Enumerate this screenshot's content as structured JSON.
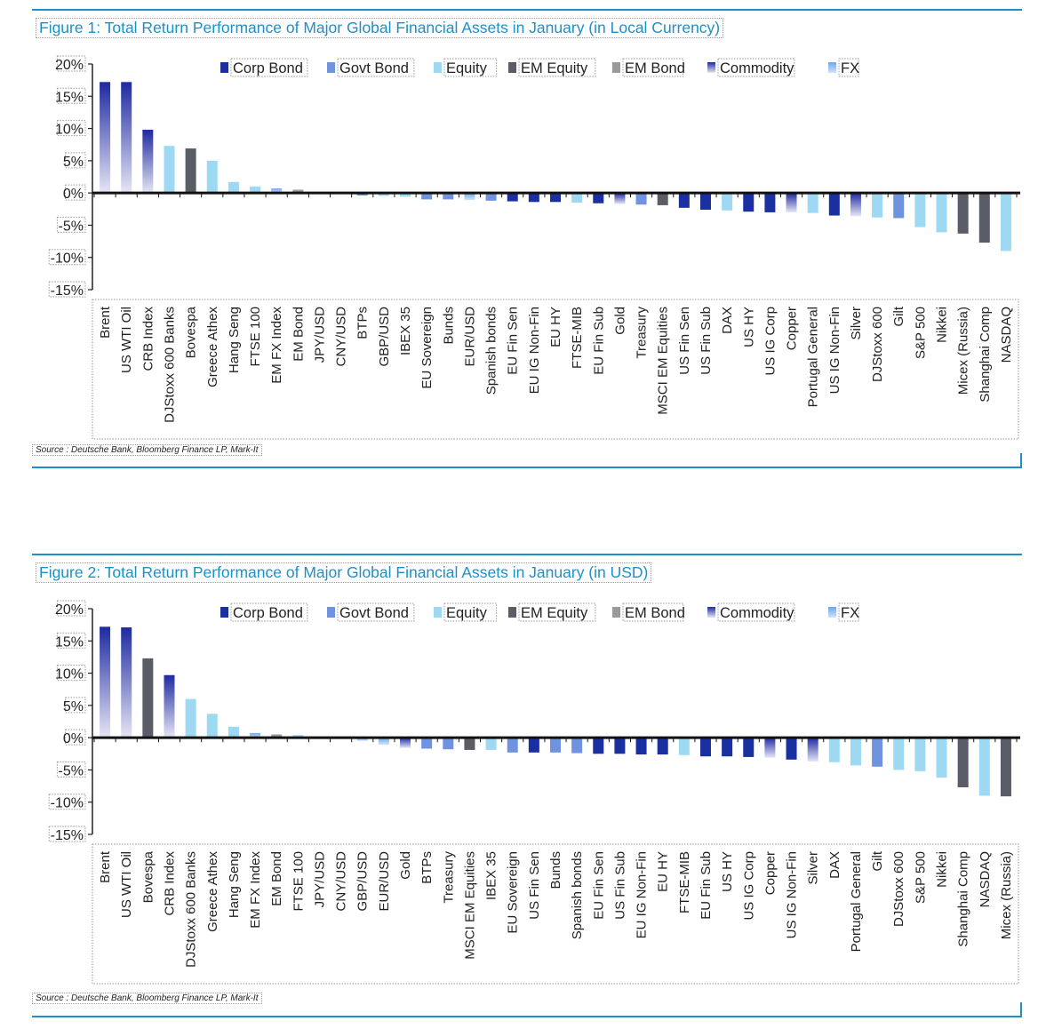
{
  "chart_data": [
    {
      "type": "bar",
      "title": "Figure 1: Total Return Performance of Major Global Financial Assets in January (in Local Currency)",
      "source": "Source : Deutsche Bank, Bloomberg Finance LP, Mark-It",
      "ylim": [
        -15,
        20
      ],
      "yticks": [
        "20%",
        "15%",
        "10%",
        "5%",
        "0%",
        "-5%",
        "-10%",
        "-15%"
      ],
      "ytick_values": [
        20,
        15,
        10,
        5,
        0,
        -5,
        -10,
        -15
      ],
      "legend": [
        {
          "name": "Corp Bond",
          "key": "corp"
        },
        {
          "name": "Govt Bond",
          "key": "govt"
        },
        {
          "name": "Equity",
          "key": "equity"
        },
        {
          "name": "EM Equity",
          "key": "emeq"
        },
        {
          "name": "EM Bond",
          "key": "embond"
        },
        {
          "name": "Commodity",
          "key": "commodity"
        },
        {
          "name": "FX",
          "key": "fx"
        }
      ],
      "categories": [
        "Brent",
        "US WTI Oil",
        "CRB Index",
        "DJStoxx 600 Banks",
        "Bovespa",
        "Greece Athex",
        "Hang Seng",
        "FTSE 100",
        "EM FX Index",
        "EM Bond",
        "JPY/USD",
        "CNY/USD",
        "BTPs",
        "GBP/USD",
        "IBEX 35",
        "EU Sovereign",
        "Bunds",
        "EUR/USD",
        "Spanish bonds",
        "EU Fin Sen",
        "EU IG Non-Fin",
        "EU HY",
        "FTSE-MIB",
        "EU Fin Sub",
        "Gold",
        "Treasury",
        "MSCI EM Equities",
        "US Fin Sen",
        "US Fin Sub",
        "DAX",
        "US HY",
        "US IG Corp",
        "Copper",
        "Portugal General",
        "US IG Non-Fin",
        "Silver",
        "DJStoxx 600",
        "Gilt",
        "S&P 500",
        "Nikkei",
        "Micex (Russia)",
        "Shanghai Comp",
        "NASDAQ"
      ],
      "values": [
        17.2,
        17.2,
        9.8,
        7.3,
        6.9,
        5.0,
        1.7,
        1.0,
        0.7,
        0.5,
        0.1,
        0.1,
        -0.4,
        -0.5,
        -0.6,
        -1.0,
        -1.0,
        -1.1,
        -1.2,
        -1.3,
        -1.4,
        -1.4,
        -1.5,
        -1.6,
        -1.7,
        -1.8,
        -1.9,
        -2.3,
        -2.6,
        -2.7,
        -2.9,
        -3.0,
        -3.0,
        -3.1,
        -3.5,
        -3.6,
        -3.8,
        -3.9,
        -5.3,
        -6.1,
        -6.3,
        -7.7,
        -9.0
      ],
      "asset_class": [
        "commodity",
        "commodity",
        "commodity",
        "equity",
        "emeq",
        "equity",
        "equity",
        "equity",
        "fx",
        "embond",
        "fx",
        "fx",
        "govt",
        "fx",
        "equity",
        "govt",
        "govt",
        "fx",
        "govt",
        "corp",
        "corp",
        "corp",
        "equity",
        "corp",
        "commodity",
        "govt",
        "emeq",
        "corp",
        "corp",
        "equity",
        "corp",
        "corp",
        "commodity",
        "equity",
        "corp",
        "commodity",
        "equity",
        "govt",
        "equity",
        "equity",
        "emeq",
        "emeq",
        "equity"
      ]
    },
    {
      "type": "bar",
      "title": "Figure 2: Total Return Performance of Major Global Financial Assets in January (in USD)",
      "source": "Source : Deutsche Bank, Bloomberg Finance LP, Mark-It",
      "ylim": [
        -15,
        20
      ],
      "yticks": [
        "20%",
        "15%",
        "10%",
        "5%",
        "0%",
        "-5%",
        "-10%",
        "-15%"
      ],
      "ytick_values": [
        20,
        15,
        10,
        5,
        0,
        -5,
        -10,
        -15
      ],
      "legend": [
        {
          "name": "Corp Bond",
          "key": "corp"
        },
        {
          "name": "Govt Bond",
          "key": "govt"
        },
        {
          "name": "Equity",
          "key": "equity"
        },
        {
          "name": "EM Equity",
          "key": "emeq"
        },
        {
          "name": "EM Bond",
          "key": "embond"
        },
        {
          "name": "Commodity",
          "key": "commodity"
        },
        {
          "name": "FX",
          "key": "fx"
        }
      ],
      "categories": [
        "Brent",
        "US WTI Oil",
        "Bovespa",
        "CRB Index",
        "DJStoxx 600 Banks",
        "Greece Athex",
        "Hang Seng",
        "EM FX Index",
        "EM Bond",
        "FTSE 100",
        "JPY/USD",
        "CNY/USD",
        "GBP/USD",
        "EUR/USD",
        "Gold",
        "BTPs",
        "Treasury",
        "MSCI EM Equities",
        "IBEX 35",
        "EU Sovereign",
        "US Fin Sen",
        "Bunds",
        "Spanish bonds",
        "EU Fin Sen",
        "US Fin Sub",
        "EU IG Non-Fin",
        "EU HY",
        "FTSE-MIB",
        "EU Fin Sub",
        "US HY",
        "US IG Corp",
        "Copper",
        "US IG Non-Fin",
        "Silver",
        "DAX",
        "Portugal General",
        "Gilt",
        "DJStoxx 600",
        "S&P 500",
        "Nikkei",
        "Shanghai Comp",
        "NASDAQ",
        "Micex (Russia)"
      ],
      "values": [
        17.2,
        17.1,
        12.3,
        9.7,
        6.0,
        3.7,
        1.7,
        0.7,
        0.5,
        0.4,
        0.1,
        0.1,
        -0.5,
        -1.1,
        -1.6,
        -1.7,
        -1.8,
        -1.9,
        -1.9,
        -2.3,
        -2.3,
        -2.3,
        -2.4,
        -2.5,
        -2.5,
        -2.6,
        -2.6,
        -2.7,
        -2.9,
        -2.9,
        -3.0,
        -3.1,
        -3.4,
        -3.7,
        -3.8,
        -4.3,
        -4.5,
        -5.0,
        -5.2,
        -6.2,
        -7.7,
        -9.0,
        -9.1
      ],
      "asset_class": [
        "commodity",
        "commodity",
        "emeq",
        "commodity",
        "equity",
        "equity",
        "equity",
        "fx",
        "embond",
        "equity",
        "fx",
        "fx",
        "fx",
        "fx",
        "commodity",
        "govt",
        "govt",
        "emeq",
        "equity",
        "govt",
        "corp",
        "govt",
        "govt",
        "corp",
        "corp",
        "corp",
        "corp",
        "equity",
        "corp",
        "corp",
        "corp",
        "commodity",
        "corp",
        "commodity",
        "equity",
        "equity",
        "govt",
        "equity",
        "equity",
        "equity",
        "emeq",
        "equity",
        "emeq"
      ]
    }
  ],
  "colors": {
    "corp": "#1a2fa0",
    "govt": "#6f93df",
    "equity": "#9ed9f4",
    "emeq": "#5a5c66",
    "embond": "#9a9a9e",
    "commodity_top": "#1e2aa0",
    "commodity_bottom": "#e6e6f5",
    "fx_top": "#6fa6ea",
    "fx_bottom": "#cfe4fb",
    "accent": "#1e90c8"
  }
}
